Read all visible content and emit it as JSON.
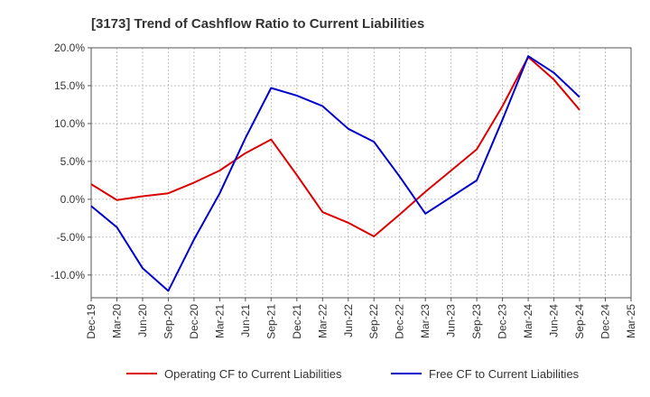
{
  "chart_data": {
    "type": "line",
    "title": "[3173]  Trend of Cashflow Ratio to Current Liabilities",
    "xlabel": "",
    "ylabel": "",
    "categories": [
      "Dec-19",
      "Mar-20",
      "Jun-20",
      "Sep-20",
      "Dec-20",
      "Mar-21",
      "Jun-21",
      "Sep-21",
      "Dec-21",
      "Mar-22",
      "Jun-22",
      "Sep-22",
      "Dec-22",
      "Mar-23",
      "Jun-23",
      "Sep-23",
      "Dec-23",
      "Mar-24",
      "Jun-24",
      "Sep-24",
      "Dec-24",
      "Mar-25"
    ],
    "ylim": [
      -13,
      20
    ],
    "yticks": [
      -10,
      -5,
      0,
      5,
      10,
      15,
      20
    ],
    "ytick_labels": [
      "-10.0%",
      "-5.0%",
      "0.0%",
      "5.0%",
      "10.0%",
      "15.0%",
      "20.0%"
    ],
    "grid": true,
    "legend_position": "bottom",
    "series": [
      {
        "name": "Operating CF to Current Liabilities",
        "color": "#dd0000",
        "values": [
          2.0,
          -0.1,
          0.4,
          0.8,
          2.2,
          3.8,
          6.1,
          7.9,
          3.2,
          -1.7,
          -3.1,
          -4.9,
          -2.0,
          1.0,
          3.8,
          6.6,
          12.3,
          18.8,
          15.8,
          11.8,
          null,
          null
        ]
      },
      {
        "name": "Free CF to Current Liabilities",
        "color": "#0000cc",
        "values": [
          -0.9,
          -3.7,
          -9.1,
          -12.1,
          -5.3,
          0.8,
          8.1,
          14.7,
          13.7,
          12.3,
          9.3,
          7.6,
          3.0,
          -1.9,
          0.3,
          2.5,
          10.5,
          18.9,
          16.7,
          13.5,
          null,
          null
        ]
      }
    ]
  }
}
